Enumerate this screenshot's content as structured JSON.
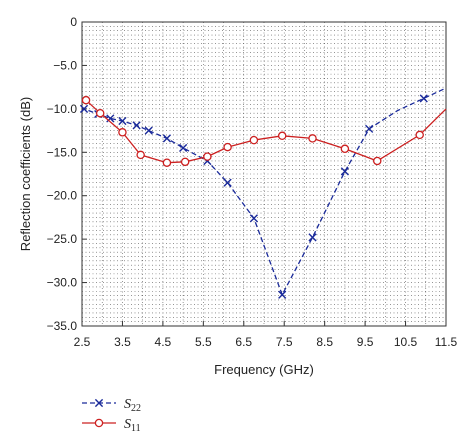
{
  "chart_data": {
    "type": "line",
    "title": "",
    "xlabel": "Frequency (GHz)",
    "ylabel": "Reflection coefficients (dB)",
    "xlim": [
      2.5,
      11.5
    ],
    "ylim": [
      -35.0,
      0
    ],
    "xticks": [
      "2.5",
      "3.5",
      "4.5",
      "5.5",
      "6.5",
      "7.5",
      "8.5",
      "9.5",
      "10.5",
      "11.5"
    ],
    "yticks": [
      "0",
      "−5.0",
      "−10.0",
      "−15.0",
      "−20.0",
      "−25.0",
      "−30.0",
      "−35.0"
    ],
    "grid": true,
    "legend_position": "bottom-left",
    "series": [
      {
        "name": "S",
        "name_sub": "22",
        "color": "#1a2a9a",
        "line_style": "dashed",
        "marker": "x",
        "x": [
          2.5,
          2.55,
          2.9,
          3.2,
          3.5,
          3.85,
          4.15,
          4.6,
          5.0,
          5.6,
          6.1,
          6.75,
          7.45,
          8.2,
          9.0,
          9.6,
          10.3,
          10.95,
          11.5
        ],
        "y": [
          -10.3,
          -10.0,
          -10.6,
          -11.1,
          -11.4,
          -11.9,
          -12.5,
          -13.4,
          -14.5,
          -16.0,
          -18.5,
          -22.6,
          -31.4,
          -24.8,
          -17.2,
          -12.3,
          -10.2,
          -8.8,
          -7.6
        ],
        "marker_x": [
          2.55,
          2.9,
          3.2,
          3.5,
          3.85,
          4.15,
          4.6,
          5.0,
          5.6,
          6.1,
          6.75,
          7.45,
          8.2,
          9.0,
          9.6,
          10.95
        ],
        "marker_y": [
          -10.0,
          -10.6,
          -11.1,
          -11.4,
          -11.9,
          -12.5,
          -13.4,
          -14.5,
          -16.0,
          -18.5,
          -22.6,
          -31.4,
          -24.8,
          -17.2,
          -12.3,
          -8.8
        ]
      },
      {
        "name": "S",
        "name_sub": "11",
        "color": "#cc2020",
        "line_style": "solid",
        "marker": "o",
        "x": [
          2.5,
          2.6,
          2.95,
          3.5,
          3.95,
          4.6,
          5.05,
          5.6,
          6.1,
          6.75,
          7.45,
          8.2,
          9.0,
          9.8,
          10.85,
          11.5
        ],
        "y": [
          -9.2,
          -9.0,
          -10.5,
          -12.7,
          -15.3,
          -16.2,
          -16.1,
          -15.5,
          -14.4,
          -13.6,
          -13.1,
          -13.4,
          -14.6,
          -16.0,
          -13.0,
          -10.0
        ],
        "marker_x": [
          2.6,
          2.95,
          3.5,
          3.95,
          4.6,
          5.05,
          5.6,
          6.1,
          6.75,
          7.45,
          8.2,
          9.0,
          9.8,
          10.85
        ],
        "marker_y": [
          -9.0,
          -10.5,
          -12.7,
          -15.3,
          -16.2,
          -16.1,
          -15.5,
          -14.4,
          -13.6,
          -13.1,
          -13.4,
          -14.6,
          -16.0,
          -13.0
        ]
      }
    ]
  }
}
